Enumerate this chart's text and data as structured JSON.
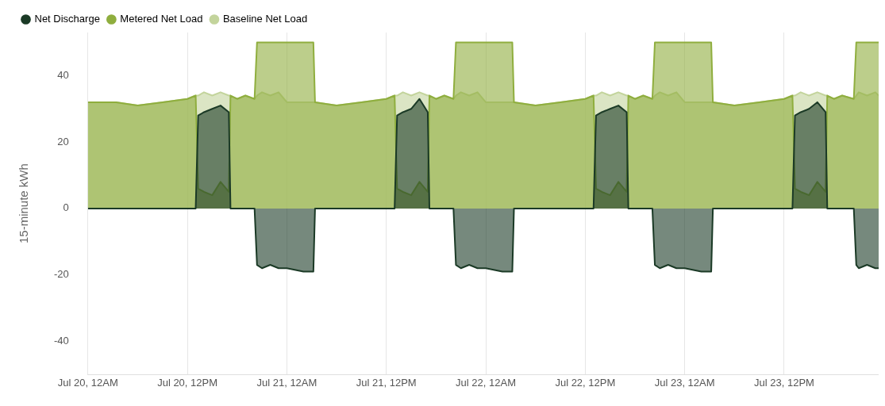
{
  "chart_data": {
    "type": "area",
    "ylabel": "15-minute kWh",
    "x": [
      "--07-20T00:00",
      "--07-20T02:00",
      "--07-20T03:12",
      "--07-20T03:24",
      "--07-20T06:00",
      "--07-20T09:00",
      "--07-20T12:00",
      "--07-20T13:00",
      "--07-20T13:18",
      "--07-20T14:00",
      "--07-20T15:00",
      "--07-20T16:00",
      "--07-20T17:00",
      "--07-20T17:12",
      "--07-20T18:00",
      "--07-20T19:00",
      "--07-20T20:06",
      "--07-20T20:24",
      "--07-20T21:00",
      "--07-20T22:00",
      "--07-20T23:00",
      "--07-21T00:00",
      "--07-21T02:00",
      "--07-21T03:12",
      "--07-21T03:24",
      "--07-21T06:00",
      "--07-21T09:00",
      "--07-21T12:00",
      "--07-21T13:00",
      "--07-21T13:18",
      "--07-21T14:00",
      "--07-21T15:00",
      "--07-21T16:00",
      "--07-21T17:00",
      "--07-21T17:12",
      "--07-21T18:00",
      "--07-21T19:00",
      "--07-21T20:06",
      "--07-21T20:24",
      "--07-21T21:00",
      "--07-21T22:00",
      "--07-21T23:00",
      "--07-22T00:00",
      "--07-22T02:00",
      "--07-22T03:12",
      "--07-22T03:24",
      "--07-22T06:00",
      "--07-22T09:00",
      "--07-22T12:00",
      "--07-22T13:00",
      "--07-22T13:18",
      "--07-22T14:00",
      "--07-22T15:00",
      "--07-22T16:00",
      "--07-22T17:00",
      "--07-22T17:12",
      "--07-22T18:00",
      "--07-22T19:00",
      "--07-22T20:06",
      "--07-22T20:24",
      "--07-22T21:00",
      "--07-22T22:00",
      "--07-22T23:00",
      "--07-23T00:00",
      "--07-23T02:00",
      "--07-23T03:12",
      "--07-23T03:24",
      "--07-23T06:00",
      "--07-23T09:00",
      "--07-23T12:00",
      "--07-23T13:00",
      "--07-23T13:18",
      "--07-23T14:00",
      "--07-23T15:00",
      "--07-23T16:00",
      "--07-23T17:00",
      "--07-23T17:12",
      "--07-23T18:00",
      "--07-23T19:00",
      "--07-23T20:24",
      "--07-23T20:42",
      "--07-23T21:00",
      "--07-23T22:00",
      "--07-23T23:00",
      "--07-23T23:24"
    ],
    "series": [
      {
        "name": "Net Discharge",
        "color": "#1b3a26",
        "values": [
          0,
          0,
          0,
          0,
          0,
          0,
          0,
          0,
          28,
          29,
          30,
          31,
          29,
          0,
          0,
          0,
          0,
          -17,
          -18,
          -17,
          -18,
          -18,
          -19,
          -19,
          0,
          0,
          0,
          0,
          0,
          28,
          29,
          30,
          33,
          29,
          0,
          0,
          0,
          0,
          -17,
          -18,
          -17,
          -18,
          -18,
          -19,
          -19,
          0,
          0,
          0,
          0,
          0,
          28,
          29,
          30,
          31,
          29,
          0,
          0,
          0,
          0,
          -17,
          -18,
          -17,
          -18,
          -18,
          -19,
          -19,
          0,
          0,
          0,
          0,
          0,
          28,
          29,
          30,
          32,
          29,
          0,
          0,
          0,
          0,
          -17,
          -18,
          -17,
          -18,
          -18
        ]
      },
      {
        "name": "Metered Net Load",
        "color": "#8fae3e",
        "values": [
          32,
          32,
          32,
          32,
          31,
          32,
          33,
          34,
          6,
          5,
          4,
          8,
          5,
          34,
          33,
          34,
          33,
          50,
          50,
          50,
          50,
          50,
          50,
          50,
          32,
          31,
          32,
          33,
          34,
          6,
          5,
          4,
          8,
          5,
          34,
          33,
          34,
          33,
          50,
          50,
          50,
          50,
          50,
          50,
          50,
          32,
          31,
          32,
          33,
          34,
          6,
          5,
          4,
          8,
          5,
          34,
          33,
          34,
          33,
          50,
          50,
          50,
          50,
          50,
          50,
          50,
          32,
          31,
          32,
          33,
          34,
          6,
          5,
          4,
          8,
          5,
          34,
          33,
          34,
          33,
          50,
          50,
          50,
          50,
          50
        ]
      },
      {
        "name": "Baseline Net Load",
        "color": "#c3d49c",
        "values": [
          32,
          32,
          32,
          32,
          31,
          32,
          33,
          34,
          34,
          35,
          34,
          35,
          34,
          34,
          33,
          34,
          33,
          34,
          35,
          34,
          35,
          32,
          32,
          32,
          32,
          31,
          32,
          33,
          34,
          34,
          35,
          34,
          35,
          34,
          34,
          33,
          34,
          33,
          34,
          35,
          34,
          35,
          32,
          32,
          32,
          32,
          31,
          32,
          33,
          34,
          34,
          35,
          34,
          35,
          34,
          34,
          33,
          34,
          33,
          34,
          35,
          34,
          35,
          32,
          32,
          32,
          32,
          31,
          32,
          33,
          34,
          34,
          35,
          34,
          35,
          34,
          34,
          33,
          34,
          33,
          34,
          35,
          34,
          35,
          34
        ]
      }
    ],
    "xlim": [
      "--07-20T00:00",
      "--07-23T23:24"
    ],
    "xticks": [
      {
        "value": "--07-20T00:00",
        "label": "Jul 20, 12AM"
      },
      {
        "value": "--07-20T12:00",
        "label": "Jul 20, 12PM"
      },
      {
        "value": "--07-21T00:00",
        "label": "Jul 21, 12AM"
      },
      {
        "value": "--07-21T12:00",
        "label": "Jul 21, 12PM"
      },
      {
        "value": "--07-22T00:00",
        "label": "Jul 22, 12AM"
      },
      {
        "value": "--07-22T12:00",
        "label": "Jul 22, 12PM"
      },
      {
        "value": "--07-23T00:00",
        "label": "Jul 23, 12AM"
      },
      {
        "value": "--07-23T12:00",
        "label": "Jul 23, 12PM"
      }
    ],
    "ylim": [
      -50,
      53
    ],
    "yticks": [
      -40,
      -20,
      0,
      20,
      40
    ],
    "grid": "x",
    "legend": "top left",
    "marker": "none"
  }
}
